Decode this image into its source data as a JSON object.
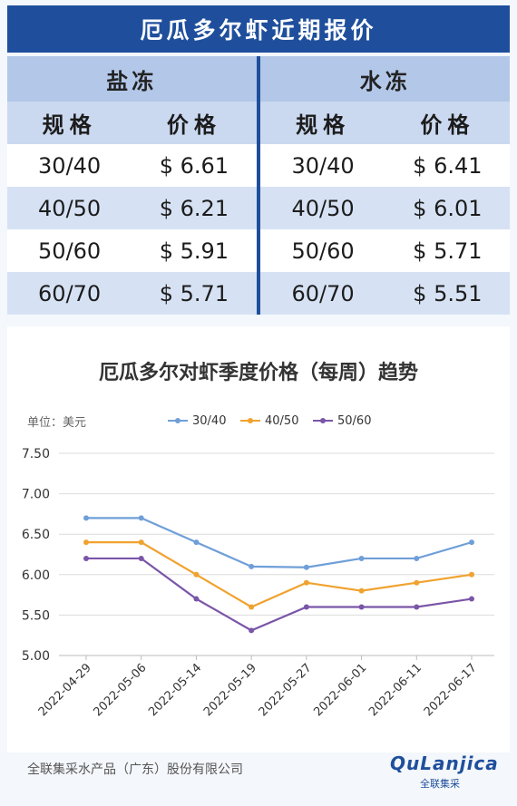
{
  "header": {
    "title": "厄瓜多尔虾近期报价"
  },
  "table": {
    "sections": [
      "盐冻",
      "水冻"
    ],
    "col_spec": "规格",
    "col_price": "价格",
    "rows": [
      {
        "spec": "30/40",
        "salt": "$ 6.61",
        "water_spec": "30/40",
        "water": "$ 6.41"
      },
      {
        "spec": "40/50",
        "salt": "$ 6.21",
        "water_spec": "40/50",
        "water": "$ 6.01"
      },
      {
        "spec": "50/60",
        "salt": "$ 5.91",
        "water_spec": "50/60",
        "water": "$ 5.71"
      },
      {
        "spec": "60/70",
        "salt": "$ 5.71",
        "water_spec": "60/70",
        "water": "$ 5.51"
      }
    ]
  },
  "chart_data": {
    "type": "line",
    "title": "厄瓜多尔对虾季度价格（每周）趋势",
    "unit": "单位：美元",
    "x": [
      "2022-04-29",
      "2022-05-06",
      "2022-05-14",
      "2022-05-19",
      "2022-05-27",
      "2022-06-01",
      "2022-06-11",
      "2022-06-17"
    ],
    "ylim": [
      5.0,
      7.5
    ],
    "yticks": [
      "5.00",
      "5.50",
      "6.00",
      "6.50",
      "7.00",
      "7.50"
    ],
    "grid": true,
    "legend_position": "top",
    "series": [
      {
        "name": "30/40",
        "color": "#6f9fd8",
        "values": [
          6.7,
          6.7,
          6.4,
          6.1,
          6.09,
          6.2,
          6.2,
          6.4
        ]
      },
      {
        "name": "40/50",
        "color": "#f0a22e",
        "values": [
          6.4,
          6.4,
          6.0,
          5.6,
          5.9,
          5.8,
          5.9,
          6.0
        ]
      },
      {
        "name": "50/60",
        "color": "#7a55a8",
        "values": [
          6.2,
          6.2,
          5.7,
          5.31,
          5.6,
          5.6,
          5.6,
          5.7
        ]
      }
    ]
  },
  "footer": {
    "company": "全联集采水产品（广东）股份有限公司",
    "logo_text": "QuLanjica",
    "logo_sub": "全联集采"
  }
}
